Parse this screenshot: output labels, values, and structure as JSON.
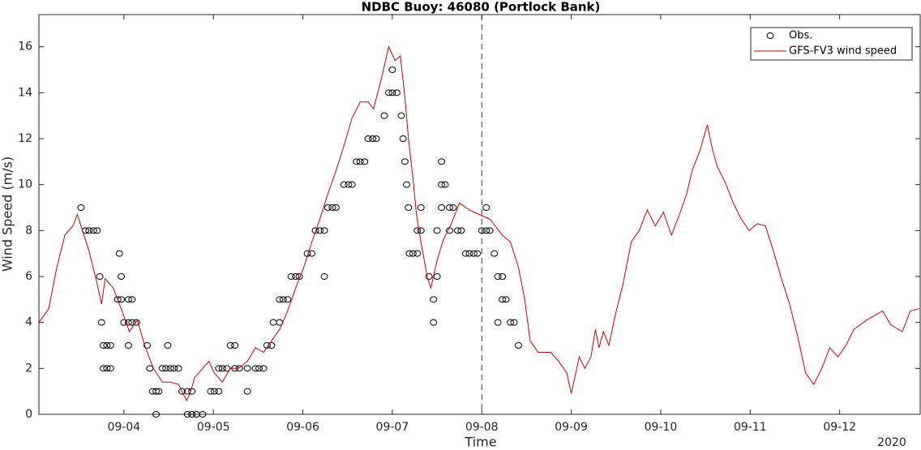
{
  "chart_data": {
    "type": "line",
    "title": "NDBC Buoy: 46080 (Portlock Bank)",
    "x_label": "Time",
    "y_label": "Wind Speed (m/s)",
    "x_year_label": "2020",
    "xlim": [
      3.05,
      12.9
    ],
    "ylim": [
      0,
      17.4
    ],
    "xticks": [
      {
        "value": 4,
        "label": "09-04"
      },
      {
        "value": 5,
        "label": "09-05"
      },
      {
        "value": 6,
        "label": "09-06"
      },
      {
        "value": 7,
        "label": "09-07"
      },
      {
        "value": 8,
        "label": "09-08"
      },
      {
        "value": 9,
        "label": "09-09"
      },
      {
        "value": 10,
        "label": "09-10"
      },
      {
        "value": 11,
        "label": "09-11"
      },
      {
        "value": 12,
        "label": "09-12"
      }
    ],
    "yticks": [
      0,
      2,
      4,
      6,
      8,
      10,
      12,
      14,
      16
    ],
    "vline": 8,
    "legend": "upper right",
    "series": [
      {
        "name": "Obs.",
        "color": "#000000",
        "style": "markers",
        "x": [
          3.52,
          3.57,
          3.61,
          3.66,
          3.7,
          3.73,
          3.75,
          3.77,
          3.81,
          3.85,
          3.77,
          3.81,
          3.85,
          3.95,
          3.97,
          3.93,
          3.97,
          4.0,
          4.05,
          4.09,
          4.05,
          4.09,
          4.14,
          4.05,
          4.26,
          4.29,
          4.32,
          4.36,
          4.39,
          4.36,
          4.49,
          4.43,
          4.47,
          4.52,
          4.56,
          4.61,
          4.65,
          4.71,
          4.76,
          4.71,
          4.76,
          4.81,
          4.88,
          4.97,
          5.01,
          5.06,
          5.06,
          5.1,
          5.15,
          5.19,
          5.24,
          5.24,
          5.29,
          5.38,
          5.38,
          5.47,
          5.51,
          5.56,
          5.6,
          5.65,
          5.67,
          5.74,
          5.74,
          5.78,
          5.83,
          5.87,
          5.92,
          5.96,
          6.05,
          6.1,
          6.14,
          6.19,
          6.24,
          6.24,
          6.28,
          6.33,
          6.37,
          6.46,
          6.51,
          6.55,
          6.6,
          6.64,
          6.69,
          6.73,
          6.78,
          6.82,
          6.91,
          6.96,
          7.0,
          7.0,
          7.05,
          7.1,
          7.12,
          7.14,
          7.16,
          7.18,
          7.19,
          7.23,
          7.28,
          7.28,
          7.32,
          7.32,
          7.41,
          7.46,
          7.46,
          7.5,
          7.5,
          7.55,
          7.55,
          7.59,
          7.55,
          7.64,
          7.68,
          7.64,
          7.73,
          7.77,
          7.82,
          7.86,
          7.91,
          7.95,
          8.0,
          8.05,
          8.05,
          8.09,
          8.14,
          8.18,
          8.23,
          8.23,
          8.27,
          8.18,
          8.32,
          8.36,
          8.41
        ],
        "values": [
          9,
          8,
          8,
          8,
          8,
          6,
          4,
          3,
          3,
          3,
          2,
          2,
          2,
          7,
          6,
          5,
          5,
          4,
          5,
          5,
          4,
          4,
          4,
          3,
          3,
          2,
          1,
          1,
          1,
          0,
          3,
          2,
          2,
          2,
          2,
          2,
          1,
          1,
          1,
          0,
          0,
          0,
          0,
          1,
          1,
          1,
          2,
          2,
          2,
          3,
          3,
          2,
          2,
          1,
          2,
          2,
          2,
          2,
          3,
          3,
          4,
          4,
          5,
          5,
          5,
          6,
          6,
          6,
          7,
          7,
          8,
          8,
          6,
          8,
          9,
          9,
          9,
          10,
          10,
          10,
          11,
          11,
          11,
          12,
          12,
          12,
          13,
          14,
          15,
          14,
          14,
          13,
          12,
          11,
          10,
          9,
          7,
          7,
          8,
          7,
          9,
          8,
          6,
          5,
          4,
          6,
          8,
          11,
          10,
          10,
          9,
          9,
          9,
          8,
          8,
          8,
          7,
          7,
          7,
          7,
          8,
          9,
          8,
          8,
          7,
          6,
          6,
          5,
          5,
          4,
          4,
          4,
          3
        ]
      },
      {
        "name": "GFS-FV3 wind speed",
        "color": "#cc0000",
        "style": "line",
        "x": [
          3.05,
          3.16,
          3.25,
          3.34,
          3.43,
          3.48,
          3.52,
          3.61,
          3.7,
          3.75,
          3.79,
          3.88,
          3.97,
          4.06,
          4.15,
          4.24,
          4.33,
          4.43,
          4.52,
          4.61,
          4.7,
          4.74,
          4.79,
          4.88,
          4.95,
          5.01,
          5.1,
          5.19,
          5.28,
          5.38,
          5.47,
          5.56,
          5.65,
          5.74,
          5.83,
          5.92,
          6.01,
          6.1,
          6.19,
          6.28,
          6.37,
          6.46,
          6.55,
          6.64,
          6.73,
          6.79,
          6.87,
          6.96,
          7.03,
          7.09,
          7.14,
          7.18,
          7.23,
          7.27,
          7.32,
          7.39,
          7.43,
          7.5,
          7.57,
          7.66,
          7.75,
          7.86,
          7.97,
          8.09,
          8.23,
          8.32,
          8.41,
          8.48,
          8.54,
          8.63,
          8.77,
          8.86,
          8.95,
          9.0,
          9.09,
          9.15,
          9.22,
          9.27,
          9.31,
          9.36,
          9.42,
          9.49,
          9.58,
          9.67,
          9.76,
          9.85,
          9.94,
          10.03,
          10.12,
          10.21,
          10.29,
          10.35,
          10.44,
          10.52,
          10.58,
          10.63,
          10.72,
          10.81,
          10.9,
          10.99,
          11.08,
          11.17,
          11.26,
          11.35,
          11.44,
          11.53,
          11.62,
          11.71,
          11.8,
          11.89,
          11.98,
          12.07,
          12.16,
          12.3,
          12.39,
          12.48,
          12.57,
          12.7,
          12.79,
          12.89
        ],
        "values": [
          4.0,
          4.6,
          6.4,
          7.8,
          8.2,
          8.7,
          8.2,
          7.1,
          5.7,
          4.8,
          5.9,
          5.5,
          4.6,
          3.6,
          4.1,
          2.9,
          2.0,
          1.4,
          1.4,
          1.3,
          0.6,
          0.9,
          1.6,
          2.0,
          2.3,
          1.8,
          1.4,
          2.0,
          2.0,
          2.3,
          2.9,
          2.7,
          3.2,
          3.7,
          4.5,
          5.5,
          6.4,
          7.5,
          8.5,
          9.6,
          10.6,
          11.7,
          12.9,
          13.6,
          13.6,
          13.3,
          14.5,
          16.0,
          15.4,
          15.6,
          13.8,
          12.0,
          10.3,
          8.7,
          7.5,
          6.0,
          5.5,
          6.7,
          7.6,
          8.3,
          9.2,
          8.9,
          8.7,
          8.5,
          7.8,
          7.5,
          6.4,
          5.0,
          3.2,
          2.7,
          2.7,
          2.3,
          1.8,
          0.9,
          2.5,
          2.0,
          2.5,
          3.7,
          2.9,
          3.6,
          3.0,
          4.3,
          5.7,
          7.5,
          8.0,
          8.9,
          8.2,
          8.8,
          7.8,
          8.7,
          9.6,
          10.6,
          11.5,
          12.6,
          11.5,
          10.8,
          10.1,
          9.2,
          8.5,
          8.0,
          8.3,
          8.2,
          7.1,
          5.9,
          4.8,
          3.4,
          1.8,
          1.3,
          2.0,
          2.9,
          2.5,
          3.0,
          3.7,
          4.1,
          4.3,
          4.5,
          3.9,
          3.6,
          4.5,
          4.6
        ]
      }
    ]
  }
}
